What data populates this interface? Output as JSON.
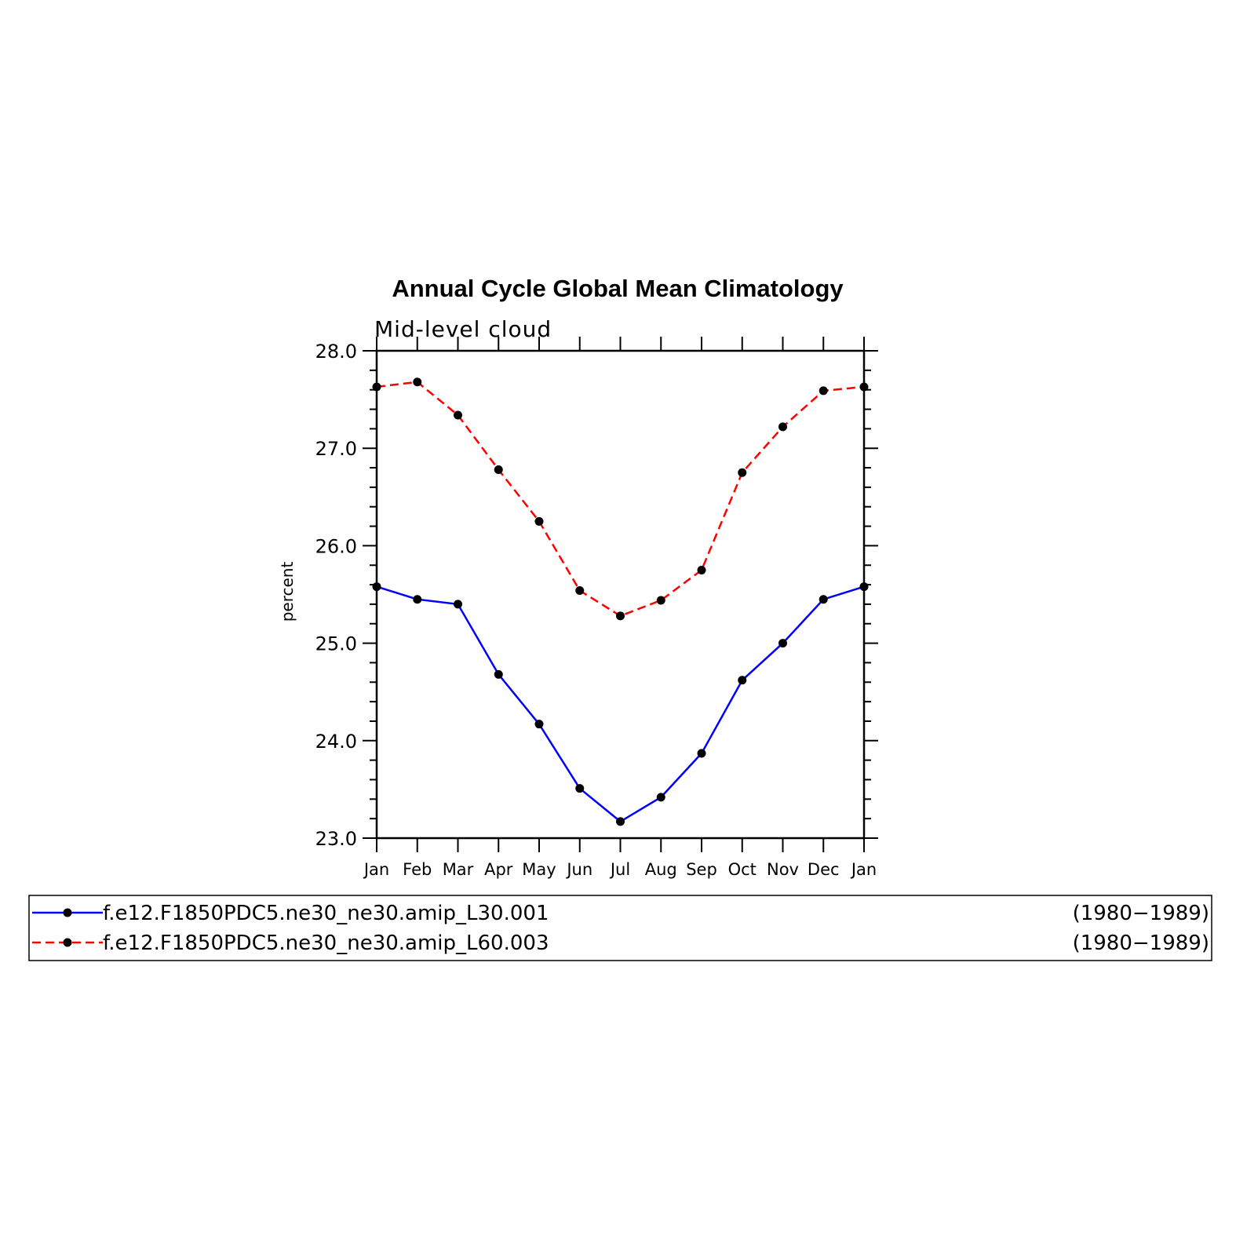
{
  "chart_data": {
    "type": "line",
    "title": "Annual Cycle Global Mean Climatology",
    "subtitle": "Mid-level cloud",
    "xlabel": "",
    "ylabel": "percent",
    "categories": [
      "Jan",
      "Feb",
      "Mar",
      "Apr",
      "May",
      "Jun",
      "Jul",
      "Aug",
      "Sep",
      "Oct",
      "Nov",
      "Dec",
      "Jan"
    ],
    "ylim": [
      23.0,
      28.0
    ],
    "yticks": [
      "23.0",
      "24.0",
      "25.0",
      "26.0",
      "27.0",
      "28.0"
    ],
    "grid": false,
    "series": [
      {
        "name": "f.e12.F1850PDC5.ne30_ne30.amip_L30.001",
        "period": "(1980−1989)",
        "color": "#0000ff",
        "dash": "solid",
        "values": [
          25.58,
          25.45,
          25.4,
          24.68,
          24.17,
          23.51,
          23.17,
          23.42,
          23.87,
          24.62,
          25.0,
          25.45,
          25.58
        ]
      },
      {
        "name": "f.e12.F1850PDC5.ne30_ne30.amip_L60.003",
        "period": "(1980−1989)",
        "color": "#ff0000",
        "dash": "dashed",
        "values": [
          27.63,
          27.68,
          27.34,
          26.78,
          26.25,
          25.54,
          25.28,
          25.44,
          25.75,
          26.75,
          27.22,
          27.59,
          27.63
        ]
      }
    ],
    "legend_position": "bottom"
  }
}
